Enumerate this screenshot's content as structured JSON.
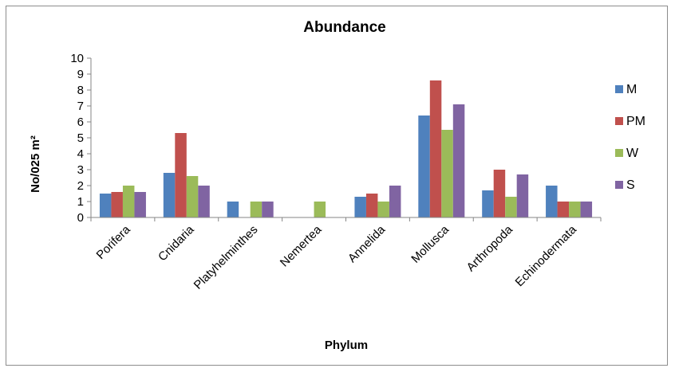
{
  "chart_data": {
    "type": "bar",
    "title": "Abundance",
    "xlabel": "Phylum",
    "ylabel": "No/025 m²",
    "categories": [
      "Porifera",
      "Cnidaria",
      "Platyhelminthes",
      "Nemertea",
      "Annelida",
      "Mollusca",
      "Arthropoda",
      "Echinodermata"
    ],
    "ylim": [
      0,
      10
    ],
    "yticks": [
      "0",
      "1",
      "2",
      "3",
      "4",
      "5",
      "6",
      "7",
      "8",
      "9",
      "10"
    ],
    "grid": false,
    "legend_position": "right",
    "series": [
      {
        "name": "M",
        "color": "#4F81BD",
        "values": [
          1.5,
          2.8,
          1.0,
          0.0,
          1.3,
          6.4,
          1.7,
          2.0
        ]
      },
      {
        "name": "PM",
        "color": "#C0504D",
        "values": [
          1.6,
          5.3,
          0.0,
          0.0,
          1.5,
          8.6,
          3.0,
          1.0
        ]
      },
      {
        "name": "W",
        "color": "#9BBB59",
        "values": [
          2.0,
          2.6,
          1.0,
          1.0,
          1.0,
          5.5,
          1.3,
          1.0
        ]
      },
      {
        "name": "S",
        "color": "#8064A2",
        "values": [
          1.6,
          2.0,
          1.0,
          0.0,
          2.0,
          7.1,
          2.7,
          1.0
        ]
      }
    ]
  }
}
